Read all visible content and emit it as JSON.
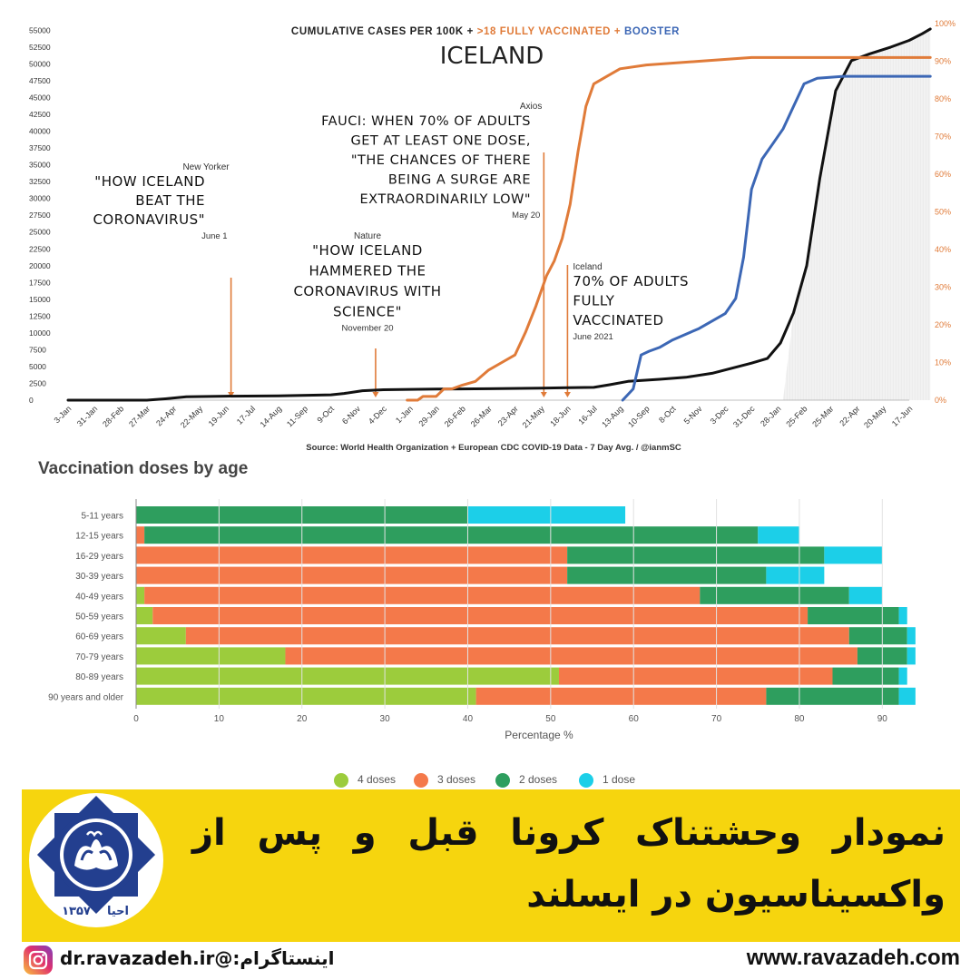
{
  "top_chart": {
    "header_prefix": "CUMULATIVE CASES PER 100K + ",
    "header_vacc": ">18 FULLY VACCINATED + ",
    "header_booster": "BOOSTER",
    "country": "ICELAND",
    "source": "Source: World Health Organization + European CDC COVID-19 Data - 7 Day Avg. / @ianmSC",
    "colors": {
      "cases": "#111111",
      "vaccinated": "#e07b39",
      "booster": "#3c67b5",
      "right_axis": "#e07b39"
    },
    "annotations": [
      {
        "source": "New Yorker",
        "lines": [
          "\"HOW ICELAND",
          "BEAT THE",
          "CORONAVIRUS\""
        ],
        "date": "June 1"
      },
      {
        "source": "Nature",
        "lines": [
          "\"HOW ICELAND",
          "HAMMERED THE",
          "CORONAVIRUS WITH",
          "SCIENCE\""
        ],
        "date": "November 20"
      },
      {
        "source": "Axios",
        "lines": [
          "FAUCI: WHEN 70% OF ADULTS",
          "GET AT LEAST ONE DOSE,",
          "\"THE CHANCES OF THERE",
          "BEING A SURGE ARE",
          "EXTRAORDINARILY LOW\""
        ],
        "date": "May 20"
      },
      {
        "source": "Iceland",
        "lines": [
          "70% OF ADULTS",
          "FULLY",
          "VACCINATED"
        ],
        "date": "June 2021"
      }
    ]
  },
  "bottom_chart": {
    "title": "Vaccination doses by age",
    "xlabel": "Percentage %",
    "legend": [
      {
        "label": "4 doses",
        "color": "#9ccc3c"
      },
      {
        "label": "3 doses",
        "color": "#f4794a"
      },
      {
        "label": "2 doses",
        "color": "#2e9e5e"
      },
      {
        "label": "1 dose",
        "color": "#1ccfe8"
      }
    ]
  },
  "chart_data": [
    {
      "type": "line",
      "title": "ICELAND",
      "subtitle": "CUMULATIVE CASES PER 100K + >18 FULLY VACCINATED + BOOSTER",
      "x_ticks": [
        "3-Jan",
        "31-Jan",
        "28-Feb",
        "27-Mar",
        "24-Apr",
        "22-May",
        "19-Jun",
        "17-Jul",
        "14-Aug",
        "11-Sep",
        "9-Oct",
        "6-Nov",
        "4-Dec",
        "1-Jan",
        "29-Jan",
        "26-Feb",
        "26-Mar",
        "23-Apr",
        "21-May",
        "18-Jun",
        "16-Jul",
        "13-Aug",
        "10-Sep",
        "8-Oct",
        "5-Nov",
        "3-Dec",
        "31-Dec",
        "28-Jan",
        "25-Feb",
        "25-Mar",
        "22-Apr",
        "20-May",
        "17-Jun"
      ],
      "y_left_ticks": [
        0,
        2500,
        5000,
        7500,
        10000,
        12500,
        15000,
        17500,
        20000,
        22500,
        25000,
        27500,
        30000,
        32500,
        35000,
        37500,
        40000,
        42500,
        45000,
        47500,
        50000,
        52500,
        55000
      ],
      "y_left_range": [
        0,
        56000
      ],
      "y_right_ticks": [
        "0%",
        "10%",
        "20%",
        "30%",
        "40%",
        "50%",
        "60%",
        "70%",
        "80%",
        "90%",
        "100%"
      ],
      "y_right_range": [
        0,
        100
      ],
      "grid": false,
      "series": [
        {
          "name": "CUMULATIVE CASES PER 100K",
          "axis": "left",
          "points": [
            [
              0,
              0
            ],
            [
              3,
              0
            ],
            [
              3.7,
              200
            ],
            [
              4.5,
              500
            ],
            [
              6,
              600
            ],
            [
              8,
              650
            ],
            [
              10,
              800
            ],
            [
              10.5,
              1000
            ],
            [
              11.2,
              1400
            ],
            [
              12,
              1550
            ],
            [
              14,
              1650
            ],
            [
              16,
              1700
            ],
            [
              18,
              1800
            ],
            [
              19,
              1850
            ],
            [
              20,
              1900
            ],
            [
              20.6,
              2300
            ],
            [
              21.3,
              2800
            ],
            [
              22.5,
              3100
            ],
            [
              23.5,
              3400
            ],
            [
              24.5,
              4000
            ],
            [
              25.3,
              4800
            ],
            [
              26,
              5500
            ],
            [
              26.6,
              6200
            ],
            [
              27.1,
              8500
            ],
            [
              27.6,
              13000
            ],
            [
              28.1,
              20000
            ],
            [
              28.6,
              33000
            ],
            [
              29.2,
              46000
            ],
            [
              29.8,
              50500
            ],
            [
              30.5,
              51500
            ],
            [
              31.3,
              52500
            ],
            [
              32,
              53500
            ],
            [
              32.5,
              54500
            ],
            [
              32.8,
              55200
            ]
          ]
        },
        {
          "name": ">18 FULLY VACCINATED",
          "axis": "right",
          "points": [
            [
              12.9,
              0
            ],
            [
              13.3,
              0
            ],
            [
              13.5,
              1
            ],
            [
              14,
              1
            ],
            [
              14.3,
              3
            ],
            [
              14.6,
              3
            ],
            [
              15,
              4
            ],
            [
              15.5,
              5
            ],
            [
              16,
              8
            ],
            [
              16.5,
              10
            ],
            [
              17,
              12
            ],
            [
              17.4,
              18
            ],
            [
              17.8,
              25
            ],
            [
              18.2,
              33
            ],
            [
              18.5,
              37
            ],
            [
              18.8,
              43
            ],
            [
              19.1,
              52
            ],
            [
              19.4,
              66
            ],
            [
              19.7,
              78
            ],
            [
              20,
              84
            ],
            [
              20.5,
              86
            ],
            [
              21,
              88
            ],
            [
              22,
              89
            ],
            [
              24,
              90
            ],
            [
              26,
              91
            ],
            [
              28,
              91
            ],
            [
              30,
              91
            ],
            [
              32,
              91
            ],
            [
              32.8,
              91
            ]
          ]
        },
        {
          "name": "BOOSTER",
          "axis": "right",
          "points": [
            [
              21.1,
              0
            ],
            [
              21.5,
              3
            ],
            [
              21.8,
              12
            ],
            [
              22.1,
              13
            ],
            [
              22.5,
              14
            ],
            [
              23,
              16
            ],
            [
              24,
              19
            ],
            [
              25,
              23
            ],
            [
              25.4,
              27
            ],
            [
              25.7,
              38
            ],
            [
              26,
              56
            ],
            [
              26.4,
              64
            ],
            [
              26.8,
              68
            ],
            [
              27.2,
              72
            ],
            [
              27.6,
              78
            ],
            [
              28,
              84
            ],
            [
              28.5,
              85.5
            ],
            [
              29.5,
              86
            ],
            [
              31,
              86
            ],
            [
              32.8,
              86
            ]
          ]
        }
      ]
    },
    {
      "type": "bar",
      "orientation": "horizontal",
      "stacked": true,
      "title": "Vaccination doses by age",
      "xlabel": "Percentage %",
      "xlim": [
        0,
        95
      ],
      "x_ticks": [
        0,
        10,
        20,
        30,
        40,
        50,
        60,
        70,
        80,
        90
      ],
      "categories": [
        "5-11 years",
        "12-15 years",
        "16-29 years",
        "30-39 years",
        "40-49 years",
        "50-59 years",
        "60-69 years",
        "70-79 years",
        "80-89 years",
        "90 years and older"
      ],
      "series": [
        {
          "name": "4 doses",
          "values": [
            0,
            0,
            0,
            0,
            1,
            2,
            6,
            18,
            51,
            41
          ]
        },
        {
          "name": "3 doses",
          "values": [
            0,
            1,
            52,
            52,
            67,
            79,
            80,
            69,
            33,
            35
          ]
        },
        {
          "name": "2 doses",
          "values": [
            40,
            74,
            31,
            24,
            18,
            11,
            7,
            6,
            8,
            16
          ]
        },
        {
          "name": "1 dose",
          "values": [
            19,
            5,
            7,
            7,
            4,
            1,
            1,
            1,
            1,
            2
          ]
        }
      ]
    }
  ],
  "banner": {
    "line1": "نمودار وحشتناک کرونا قبل و پس از",
    "line2": "واکسیناسیون در ایسلند",
    "logo_text_left": "۱۳۵۷",
    "logo_text_right": "احیا"
  },
  "footer": {
    "website": "www.ravazadeh.com",
    "instagram": "اینستاگرام:@dr.ravazadeh.ir",
    "instagram_icon": "instagram-icon"
  }
}
